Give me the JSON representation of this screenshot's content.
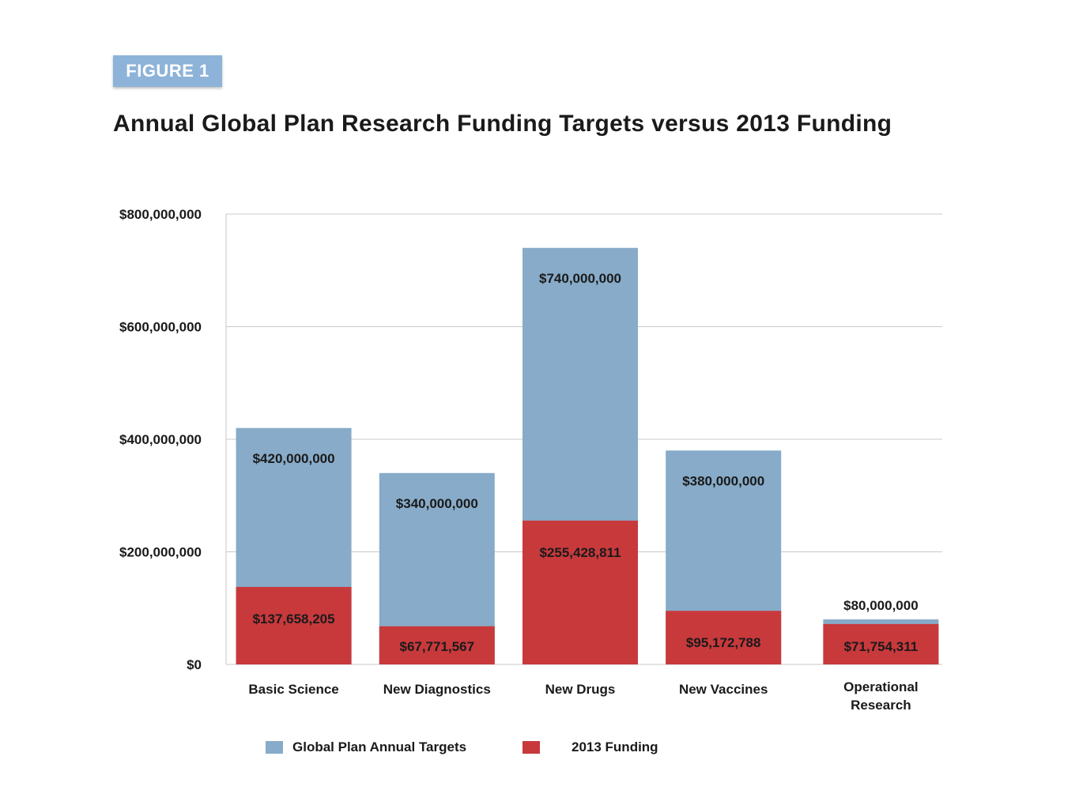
{
  "figure_label": "FIGURE 1",
  "colors": {
    "target": "#87abc8",
    "funding": "#c8393c",
    "grid": "#c8c8c8"
  },
  "chart_data": {
    "type": "bar",
    "stacked": "overlay",
    "title": "Annual Global Plan Research Funding Targets versus 2013 Funding",
    "categories": [
      "Basic Science",
      "New Diagnostics",
      "New Drugs",
      "New Vaccines",
      "Operational Research"
    ],
    "series": [
      {
        "name": "Global Plan Annual Targets",
        "values": [
          420000000,
          340000000,
          740000000,
          380000000,
          80000000
        ],
        "labels": [
          "$420,000,000",
          "$340,000,000",
          "$740,000,000",
          "$380,000,000",
          "$80,000,000"
        ]
      },
      {
        "name": "2013 Funding",
        "values": [
          137658205,
          67771567,
          255428811,
          95172788,
          71754311
        ],
        "labels": [
          "$137,658,205",
          "$67,771,567",
          "$255,428,811",
          "$95,172,788",
          "$71,754,311"
        ]
      }
    ],
    "yticks": [
      0,
      200000000,
      400000000,
      600000000,
      800000000
    ],
    "ytick_labels": [
      "$0",
      "$200,000,000",
      "$400,000,000",
      "$600,000,000",
      "$800,000,000"
    ],
    "ylim": [
      0,
      800000000
    ],
    "grid": true,
    "legend_position": "bottom"
  }
}
